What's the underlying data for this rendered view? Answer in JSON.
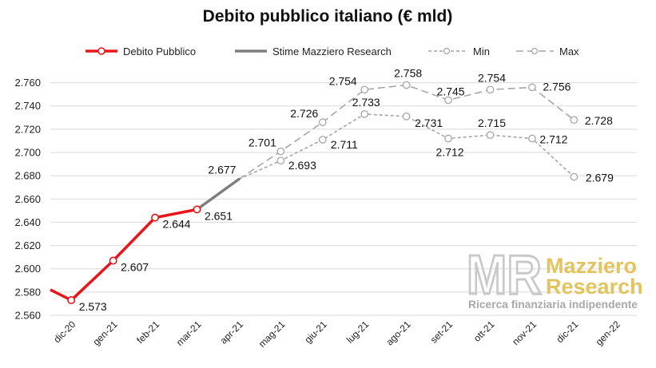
{
  "chart_data": {
    "type": "line",
    "title": "Debito pubblico italiano (€ mld)",
    "categories": [
      "dic-20",
      "gen-21",
      "feb-21",
      "mar-21",
      "apr-21",
      "mag-21",
      "giu-21",
      "lug-21",
      "ago-21",
      "set-21",
      "ott-21",
      "nov-21",
      "dic-21",
      "gen-22"
    ],
    "ylim": [
      2560,
      2770
    ],
    "yticks": [
      "2.560",
      "2.580",
      "2.600",
      "2.620",
      "2.640",
      "2.660",
      "2.680",
      "2.700",
      "2.720",
      "2.740",
      "2.760"
    ],
    "ytick_values": [
      2560,
      2580,
      2600,
      2620,
      2640,
      2660,
      2680,
      2700,
      2720,
      2740,
      2760
    ],
    "grid": true,
    "legend_position": "top",
    "series": [
      {
        "name": "Debito Pubblico",
        "color": "#e8161b",
        "style": "solid",
        "marker": "circle",
        "lead_in_value": 2582,
        "points": [
          {
            "x": "dic-20",
            "y": 2573,
            "label": "2.573"
          },
          {
            "x": "gen-21",
            "y": 2607,
            "label": "2.607"
          },
          {
            "x": "feb-21",
            "y": 2644,
            "label": "2.644"
          },
          {
            "x": "mar-21",
            "y": 2651,
            "label": "2.651"
          }
        ]
      },
      {
        "name": "Stime Mazziero Research",
        "color": "#7f7f7f",
        "style": "solid",
        "marker": "none",
        "points": [
          {
            "x": "mar-21",
            "y": 2651
          },
          {
            "x": "apr-21",
            "y": 2677,
            "label": "2.677"
          }
        ]
      },
      {
        "name": "Min",
        "color": "#a6a6a6",
        "style": "dashed",
        "marker": "circle",
        "points": [
          {
            "x": "apr-21",
            "y": 2677
          },
          {
            "x": "mag-21",
            "y": 2693,
            "label": "2.693"
          },
          {
            "x": "giu-21",
            "y": 2711,
            "label": "2.711"
          },
          {
            "x": "lug-21",
            "y": 2733,
            "label": "2.733"
          },
          {
            "x": "ago-21",
            "y": 2731,
            "label": "2.731"
          },
          {
            "x": "set-21",
            "y": 2712,
            "label": "2.712"
          },
          {
            "x": "ott-21",
            "y": 2715,
            "label": "2.715"
          },
          {
            "x": "nov-21",
            "y": 2712,
            "label": "2.712"
          },
          {
            "x": "dic-21",
            "y": 2679,
            "label": "2.679"
          }
        ]
      },
      {
        "name": "Max",
        "color": "#a6a6a6",
        "style": "dashed",
        "marker": "circle",
        "points": [
          {
            "x": "apr-21",
            "y": 2677
          },
          {
            "x": "mag-21",
            "y": 2701,
            "label": "2.701"
          },
          {
            "x": "giu-21",
            "y": 2726,
            "label": "2.726"
          },
          {
            "x": "lug-21",
            "y": 2754,
            "label": "2.754"
          },
          {
            "x": "ago-21",
            "y": 2758,
            "label": "2.758"
          },
          {
            "x": "set-21",
            "y": 2745,
            "label": "2.745"
          },
          {
            "x": "ott-21",
            "y": 2754,
            "label": "2.754"
          },
          {
            "x": "nov-21",
            "y": 2756,
            "label": "2.756"
          },
          {
            "x": "dic-21",
            "y": 2728,
            "label": "2.728"
          }
        ]
      }
    ]
  },
  "watermark": {
    "monogram": "MR",
    "name_line1": "Mazziero",
    "name_line2": "Research",
    "tagline": "Ricerca finanziaria indipendente",
    "colors": {
      "monogram": "#c9c9c9",
      "name": "#e2c45f",
      "tagline": "#a8a8a8"
    }
  }
}
